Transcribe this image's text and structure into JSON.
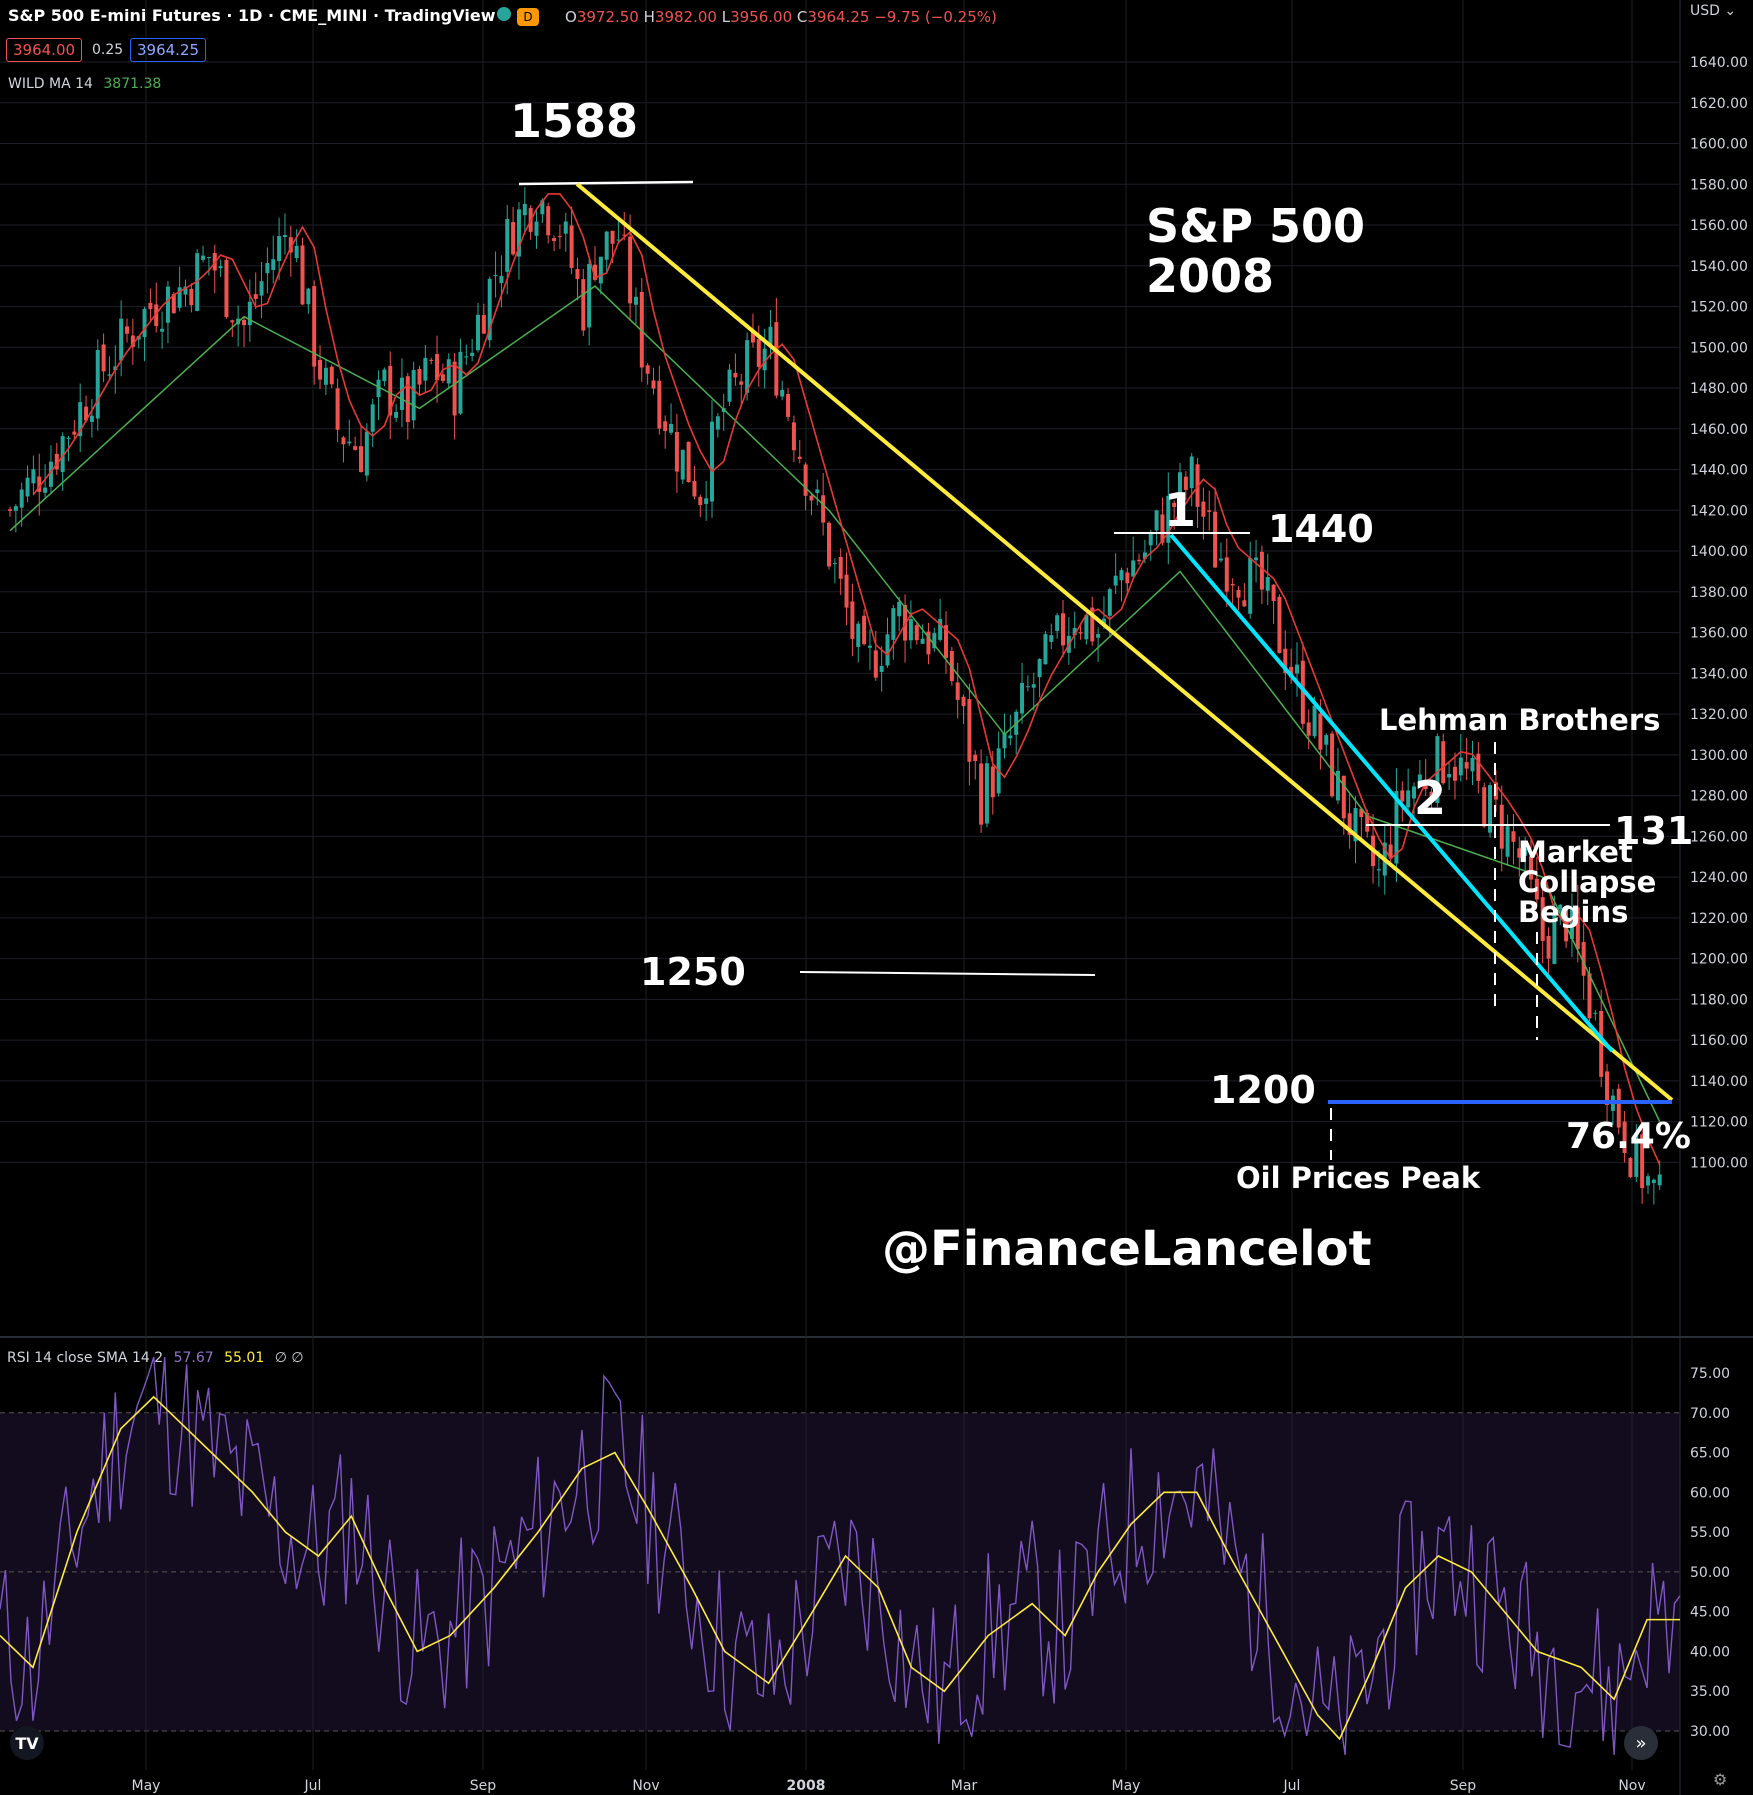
{
  "header": {
    "title": "S&P 500 E-mini Futures · 1D · CME_MINI · TradingView",
    "ohlc": {
      "open_label": "O",
      "open": "3972.50",
      "high_label": "H",
      "high": "3982.00",
      "low_label": "L",
      "low": "3956.00",
      "close_label": "C",
      "close": "3964.25",
      "change": "−9.75 (−0.25%)"
    },
    "bid": "3964.00",
    "spread": "0.25",
    "ask": "3964.25",
    "ma_label": "WILD MA 14",
    "ma_value": "3871.38",
    "currency": "USD"
  },
  "rsi_header": {
    "label": "RSI 14 close SMA 14 2",
    "rsi_value": "57.67",
    "sma_value": "55.01",
    "extra": "∅ ∅"
  },
  "annotations": {
    "peak": "1588",
    "title_line1": "S&P 500",
    "title_line2": "2008",
    "point1": "1",
    "level1440": "1440",
    "lehman": "Lehman Brothers",
    "point2": "2",
    "level131": "131",
    "market_line1": "Market",
    "market_line2": "Collapse",
    "market_line3": "Begins",
    "level1250": "1250",
    "level1200": "1200",
    "fib": "76.4%",
    "oil": "Oil Prices Peak",
    "watermark": "@FinanceLancelot"
  },
  "colors": {
    "up": "#26a69a",
    "down": "#ef5350",
    "wildma": "#4caf50",
    "ema_red": "#e53935",
    "trend_yellow": "#ffeb3b",
    "trend_cyan": "#00e5ff",
    "support_blue": "#2962ff",
    "rsi": "#7e57c2",
    "rsi_sma": "#ffeb3b"
  },
  "chart_data": [
    {
      "type": "candlestick",
      "title": "S&P 500 E-mini Futures · 1D",
      "y_axis_ticks": [
        1100,
        1120,
        1140,
        1160,
        1180,
        1200,
        1220,
        1240,
        1260,
        1280,
        1300,
        1320,
        1340,
        1360,
        1380,
        1400,
        1420,
        1440,
        1460,
        1480,
        1500,
        1520,
        1540,
        1560,
        1580,
        1600,
        1620,
        1640
      ],
      "x_axis_ticks": [
        "May",
        "Jul",
        "Sep",
        "Nov",
        "2008",
        "Mar",
        "May",
        "Jul",
        "Sep",
        "Nov"
      ],
      "ylim": [
        1100,
        1650
      ],
      "series_close_path": [
        [
          0,
          1420
        ],
        [
          8,
          1450
        ],
        [
          16,
          1490
        ],
        [
          24,
          1520
        ],
        [
          30,
          1530
        ],
        [
          34,
          1545
        ],
        [
          40,
          1510
        ],
        [
          44,
          1540
        ],
        [
          48,
          1560
        ],
        [
          52,
          1500
        ],
        [
          56,
          1460
        ],
        [
          60,
          1450
        ],
        [
          64,
          1480
        ],
        [
          68,
          1470
        ],
        [
          72,
          1490
        ],
        [
          76,
          1480
        ],
        [
          82,
          1530
        ],
        [
          86,
          1560
        ],
        [
          90,
          1575
        ],
        [
          94,
          1560
        ],
        [
          98,
          1520
        ],
        [
          100,
          1545
        ],
        [
          104,
          1555
        ],
        [
          108,
          1500
        ],
        [
          114,
          1450
        ],
        [
          118,
          1430
        ],
        [
          122,
          1470
        ],
        [
          126,
          1490
        ],
        [
          130,
          1500
        ],
        [
          134,
          1460
        ],
        [
          140,
          1400
        ],
        [
          146,
          1340
        ],
        [
          152,
          1370
        ],
        [
          156,
          1360
        ],
        [
          160,
          1350
        ],
        [
          166,
          1280
        ],
        [
          170,
          1300
        ],
        [
          174,
          1330
        ],
        [
          178,
          1350
        ],
        [
          182,
          1370
        ],
        [
          186,
          1360
        ],
        [
          190,
          1390
        ],
        [
          194,
          1400
        ],
        [
          198,
          1420
        ],
        [
          202,
          1435
        ],
        [
          206,
          1400
        ],
        [
          210,
          1390
        ],
        [
          214,
          1380
        ],
        [
          218,
          1350
        ],
        [
          222,
          1320
        ],
        [
          226,
          1290
        ],
        [
          230,
          1260
        ],
        [
          234,
          1240
        ],
        [
          238,
          1280
        ],
        [
          242,
          1290
        ],
        [
          246,
          1300
        ],
        [
          250,
          1285
        ],
        [
          254,
          1270
        ],
        [
          258,
          1250
        ],
        [
          262,
          1210
        ],
        [
          266,
          1220
        ],
        [
          270,
          1180
        ],
        [
          274,
          1130
        ],
        [
          278,
          1100
        ],
        [
          282,
          1080
        ]
      ],
      "wild_ma_14": [
        [
          0,
          1410
        ],
        [
          40,
          1515
        ],
        [
          70,
          1470
        ],
        [
          100,
          1530
        ],
        [
          140,
          1420
        ],
        [
          170,
          1310
        ],
        [
          200,
          1390
        ],
        [
          232,
          1270
        ],
        [
          262,
          1240
        ],
        [
          282,
          1120
        ]
      ]
    },
    {
      "type": "line",
      "title": "RSI 14 close SMA 14 2",
      "y_axis_ticks": [
        30,
        35,
        40,
        45,
        50,
        55,
        60,
        65,
        70,
        75
      ],
      "ylim": [
        27,
        77
      ],
      "reference_lines": [
        70,
        50,
        30
      ],
      "rsi_sma_path": [
        [
          0,
          42
        ],
        [
          6,
          38
        ],
        [
          14,
          55
        ],
        [
          22,
          68
        ],
        [
          28,
          72
        ],
        [
          34,
          68
        ],
        [
          40,
          64
        ],
        [
          46,
          60
        ],
        [
          52,
          55
        ],
        [
          58,
          52
        ],
        [
          64,
          57
        ],
        [
          70,
          48
        ],
        [
          76,
          40
        ],
        [
          82,
          42
        ],
        [
          90,
          48
        ],
        [
          98,
          55
        ],
        [
          106,
          63
        ],
        [
          112,
          65
        ],
        [
          118,
          58
        ],
        [
          126,
          48
        ],
        [
          132,
          40
        ],
        [
          140,
          36
        ],
        [
          148,
          45
        ],
        [
          154,
          52
        ],
        [
          160,
          48
        ],
        [
          166,
          38
        ],
        [
          172,
          35
        ],
        [
          180,
          42
        ],
        [
          188,
          46
        ],
        [
          194,
          42
        ],
        [
          200,
          50
        ],
        [
          206,
          56
        ],
        [
          212,
          60
        ],
        [
          218,
          60
        ],
        [
          224,
          52
        ],
        [
          232,
          42
        ],
        [
          240,
          32
        ],
        [
          244,
          29
        ],
        [
          250,
          38
        ],
        [
          256,
          48
        ],
        [
          262,
          52
        ],
        [
          268,
          50
        ],
        [
          274,
          45
        ],
        [
          280,
          40
        ],
        [
          288,
          38
        ],
        [
          294,
          34
        ],
        [
          300,
          44
        ],
        [
          306,
          44
        ]
      ]
    }
  ]
}
